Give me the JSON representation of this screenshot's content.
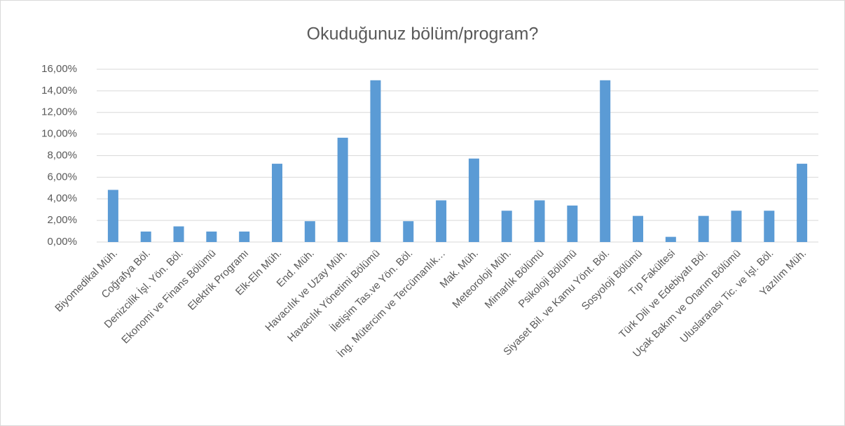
{
  "chart_data": {
    "type": "bar",
    "title": "Okuduğunuz bölüm/program?",
    "categories": [
      "Biyomedikal Müh.",
      "Coğrafya Böl.",
      "Denizcilik İşl. Yön. Böl.",
      "Ekonomi ve Finans Bölümü",
      "Elektrik Programı",
      "Elk-Eln Müh.",
      "End. Müh.",
      "Havacılık ve Uzay Müh.",
      "Havacılık Yönetimi Bölümü",
      "İletişim Tas.ve Yön. Böl.",
      "İng. Mütercim ve Tercümanlık…",
      "Mak. Müh.",
      "Meteoroloji Müh.",
      "Mimarlık Bölümü",
      "Psikoloji Bölümü",
      "Siyaset Bil. ve Kamu Yönt. Böl.",
      "Sosyoloji Bölümü",
      "Tıp Fakültesi",
      "Türk Dili ve Edebiyatı Böl.",
      "Uçak Bakım ve Onarım Bölümü",
      "Uluslararası Tic. ve İşl. Böl.",
      "Yazılım Müh."
    ],
    "values": [
      4.83,
      0.97,
      1.45,
      0.97,
      0.97,
      7.25,
      1.93,
      9.66,
      14.98,
      1.93,
      3.86,
      7.73,
      2.9,
      3.86,
      3.38,
      14.98,
      2.42,
      0.48,
      2.42,
      2.9,
      2.9,
      7.25
    ],
    "color": "#5b9bd5",
    "ylim": [
      0,
      16
    ],
    "yticks": [
      {
        "value": 0,
        "label": "0,00%"
      },
      {
        "value": 2,
        "label": "2,00%"
      },
      {
        "value": 4,
        "label": "4,00%"
      },
      {
        "value": 6,
        "label": "6,00%"
      },
      {
        "value": 8,
        "label": "8,00%"
      },
      {
        "value": 10,
        "label": "10,00%"
      },
      {
        "value": 12,
        "label": "12,00%"
      },
      {
        "value": 14,
        "label": "14,00%"
      },
      {
        "value": 16,
        "label": "16,00%"
      }
    ],
    "grid": true
  }
}
